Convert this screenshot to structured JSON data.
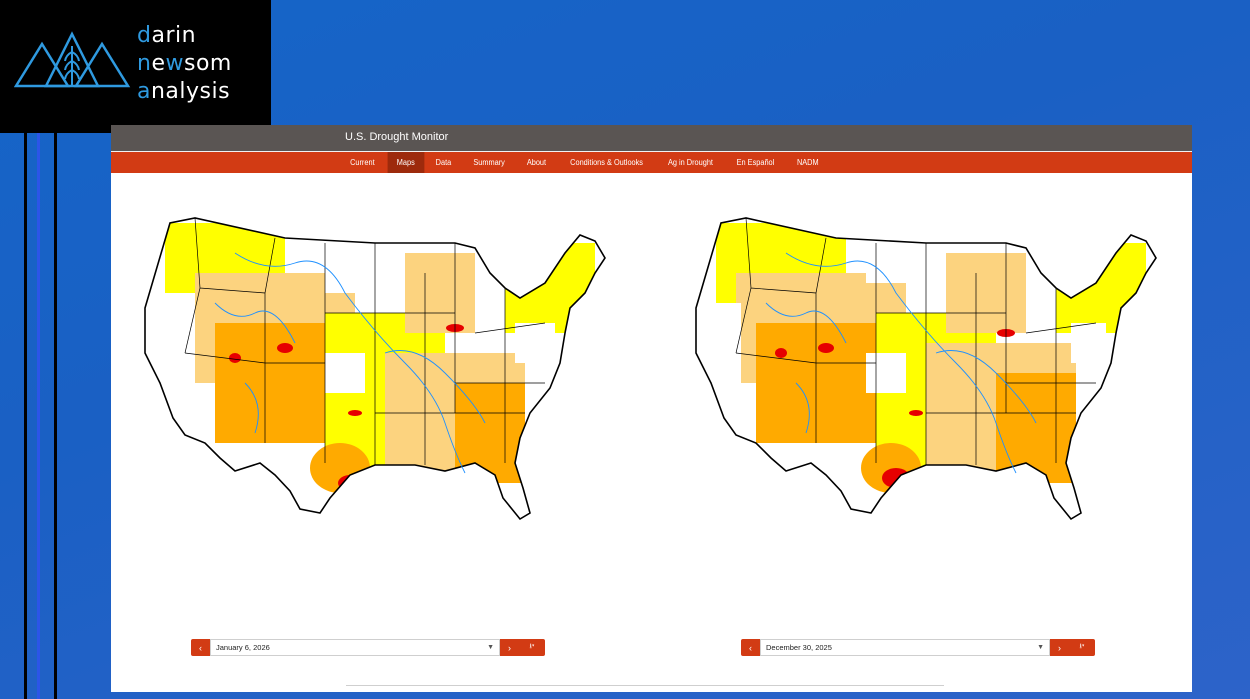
{
  "logo": {
    "line1_accent": "d",
    "line1_rest": "arin",
    "line2_pre": "n",
    "line2_mid": "e",
    "line2_acc": "w",
    "line2_rest": "som",
    "line3_accent": "a",
    "line3_rest": "nalysis",
    "accent_color": "#2f9ae0"
  },
  "site": {
    "title": "U.S. Drought Monitor",
    "nav": [
      {
        "label": "Current"
      },
      {
        "label": "Maps"
      },
      {
        "label": "Data"
      },
      {
        "label": "Summary"
      },
      {
        "label": "About"
      },
      {
        "label": "Conditions & Outlooks"
      },
      {
        "label": "Ag in Drought"
      },
      {
        "label": "En Español"
      },
      {
        "label": "NADM"
      }
    ],
    "active_nav": "Maps"
  },
  "maps": [
    {
      "date": "January 6, 2026",
      "prev_icon": "chevron-left-icon",
      "next_icon": "chevron-right-icon",
      "download_icon": "download-icon"
    },
    {
      "date": "December 30, 2025",
      "prev_icon": "chevron-left-icon",
      "next_icon": "chevron-right-icon",
      "download_icon": "download-icon"
    }
  ],
  "colors": {
    "nav_bg": "#d23b14",
    "title_bar_bg": "#5a5553",
    "d0_abnormally_dry": "#ffff00",
    "d1_moderate": "#fcd37f",
    "d2_severe": "#ffaa00",
    "d3_extreme": "#e60000",
    "water": "#1e90ff"
  }
}
